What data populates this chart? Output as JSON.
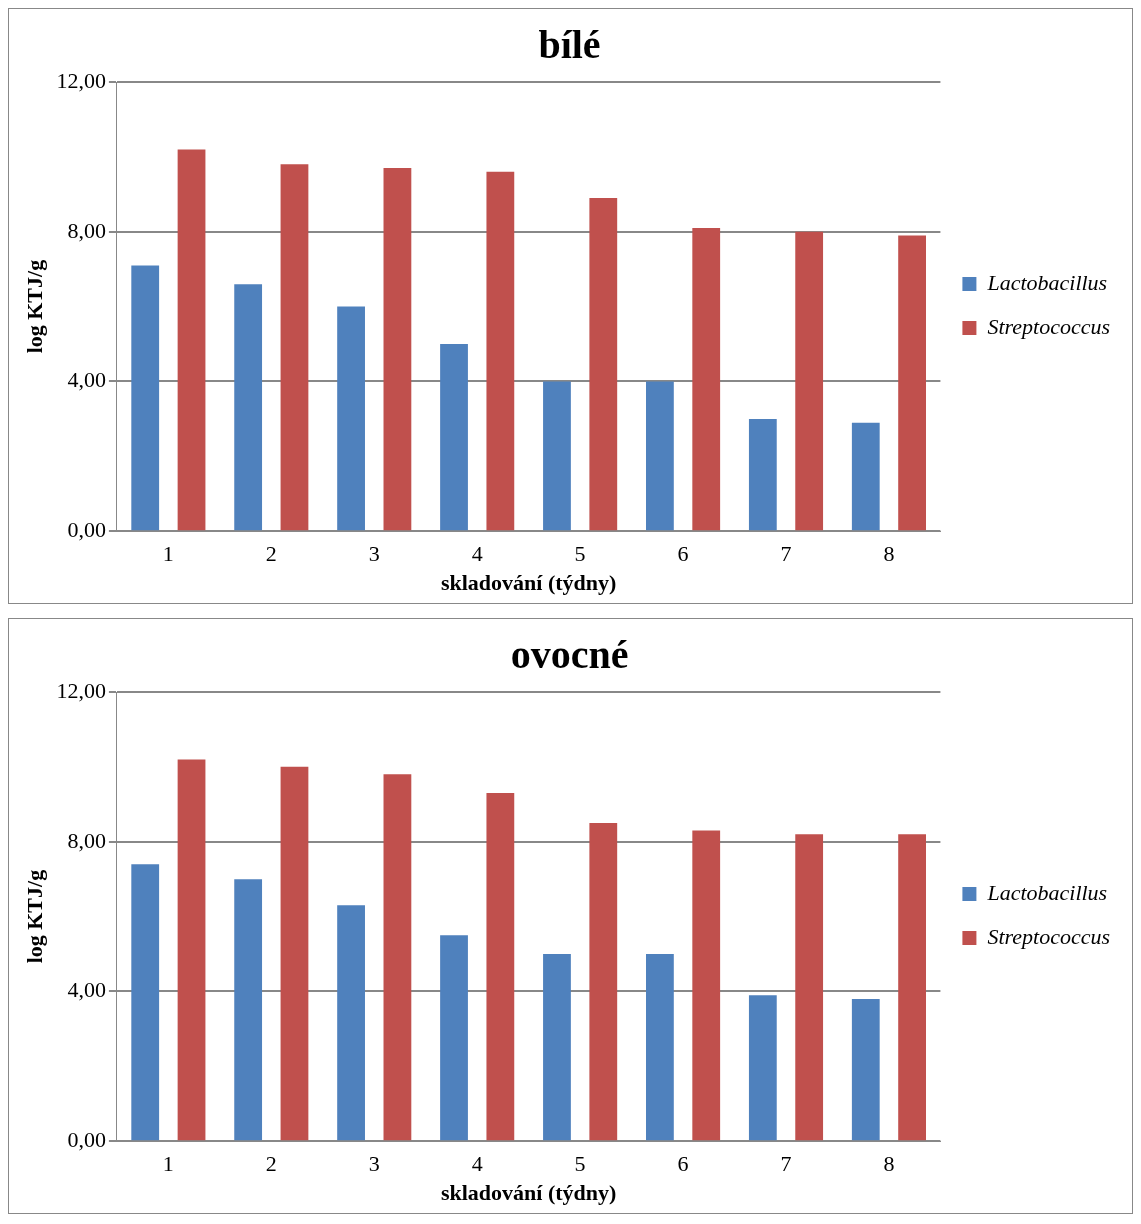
{
  "chart_data": [
    {
      "type": "bar",
      "title": "bílé",
      "xlabel": "skladování (týdny)",
      "ylabel": "log KTJ/g",
      "categories": [
        "1",
        "2",
        "3",
        "4",
        "5",
        "6",
        "7",
        "8"
      ],
      "series": [
        {
          "name": "Lactobacillus",
          "color": "#4f81bd",
          "values": [
            7.1,
            6.6,
            6.0,
            5.0,
            4.0,
            4.0,
            3.0,
            2.9
          ]
        },
        {
          "name": "Streptococcus",
          "color": "#c0504d",
          "values": [
            10.2,
            9.8,
            9.7,
            9.6,
            8.9,
            8.1,
            8.0,
            7.9
          ]
        }
      ],
      "ylim": [
        0,
        12
      ],
      "yticks": [
        {
          "value": 0,
          "label": "0,00"
        },
        {
          "value": 4,
          "label": "4,00"
        },
        {
          "value": 8,
          "label": "8,00"
        },
        {
          "value": 12,
          "label": "12,00"
        }
      ],
      "grid": "y",
      "legend": "right"
    },
    {
      "type": "bar",
      "title": "ovocné",
      "xlabel": "skladování (týdny)",
      "ylabel": "log KTJ/g",
      "categories": [
        "1",
        "2",
        "3",
        "4",
        "5",
        "6",
        "7",
        "8"
      ],
      "series": [
        {
          "name": "Lactobacillus",
          "color": "#4f81bd",
          "values": [
            7.4,
            7.0,
            6.3,
            5.5,
            5.0,
            5.0,
            3.9,
            3.8
          ]
        },
        {
          "name": "Streptococcus",
          "color": "#c0504d",
          "values": [
            10.2,
            10.0,
            9.8,
            9.3,
            8.5,
            8.3,
            8.2,
            8.2
          ]
        }
      ],
      "ylim": [
        0,
        12
      ],
      "yticks": [
        {
          "value": 0,
          "label": "0,00"
        },
        {
          "value": 4,
          "label": "4,00"
        },
        {
          "value": 8,
          "label": "8,00"
        },
        {
          "value": 12,
          "label": "12,00"
        }
      ],
      "grid": "y",
      "legend": "right"
    }
  ]
}
